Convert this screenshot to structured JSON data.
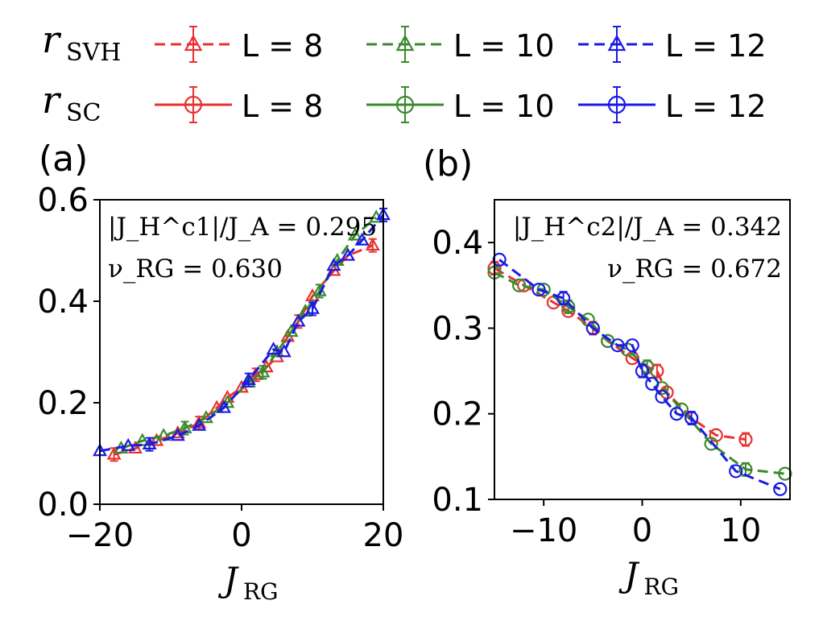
{
  "legend": {
    "rows": [
      {
        "metric": "r",
        "sub": "SVH",
        "linestyle": "dashed",
        "marker": "triangle",
        "entries": [
          {
            "label": "L = 8",
            "color": "#e8322f"
          },
          {
            "label": "L = 10",
            "color": "#3a8a2c"
          },
          {
            "label": "L = 12",
            "color": "#1a1ae6"
          }
        ]
      },
      {
        "metric": "r",
        "sub": "SC",
        "linestyle": "solid",
        "marker": "circle",
        "entries": [
          {
            "label": "L = 8",
            "color": "#e8322f"
          },
          {
            "label": "L = 10",
            "color": "#3a8a2c"
          },
          {
            "label": "L = 12",
            "color": "#1a1ae6"
          }
        ]
      }
    ]
  },
  "chart_data": [
    {
      "type": "line",
      "panel": "(a)",
      "annotation": [
        "|J_H^c1|/J_A = 0.295",
        "ν_RG = 0.630"
      ],
      "xlabel": "J_RG",
      "xlim": [
        -20,
        20
      ],
      "ylim": [
        0,
        0.6
      ],
      "xticks": [
        "−20",
        "0",
        "20"
      ],
      "yticks": [
        "0.0",
        "0.2",
        "0.4",
        "0.6"
      ],
      "marker": "triangle",
      "series": [
        {
          "name": "L = 8",
          "color": "#e8322f",
          "x": [
            -18,
            -15,
            -12,
            -9,
            -6,
            -3.5,
            -2,
            0,
            2,
            3.5,
            5,
            6.5,
            8,
            10,
            13,
            15,
            18.5
          ],
          "y": [
            0.098,
            0.11,
            0.125,
            0.14,
            0.16,
            0.19,
            0.21,
            0.23,
            0.255,
            0.27,
            0.29,
            0.33,
            0.36,
            0.41,
            0.46,
            0.49,
            0.51
          ]
        },
        {
          "name": "L = 10",
          "color": "#3a8a2c",
          "x": [
            -17,
            -14,
            -11,
            -8,
            -5,
            -2,
            1,
            3,
            5,
            7,
            9,
            11,
            13.5,
            16,
            19
          ],
          "y": [
            0.11,
            0.125,
            0.135,
            0.15,
            0.17,
            0.2,
            0.24,
            0.26,
            0.3,
            0.34,
            0.38,
            0.42,
            0.48,
            0.53,
            0.565
          ]
        },
        {
          "name": "L = 12",
          "color": "#1a1ae6",
          "x": [
            -20,
            -16,
            -13,
            -9,
            -6,
            -2.5,
            1,
            4.5,
            6,
            8,
            10,
            13,
            15,
            17,
            20
          ],
          "y": [
            0.105,
            0.115,
            0.118,
            0.135,
            0.155,
            0.19,
            0.245,
            0.305,
            0.3,
            0.36,
            0.385,
            0.47,
            0.49,
            0.52,
            0.57
          ]
        }
      ]
    },
    {
      "type": "line",
      "panel": "(b)",
      "annotation": [
        "|J_H^c2|/J_A = 0.342",
        "ν_RG = 0.672"
      ],
      "xlabel": "J_RG",
      "xlim": [
        -15,
        15
      ],
      "ylim": [
        0.1,
        0.45
      ],
      "xticks": [
        "−10",
        "0",
        "10"
      ],
      "yticks": [
        "0.1",
        "0.2",
        "0.3",
        "0.4"
      ],
      "marker": "circle",
      "series": [
        {
          "name": "L = 8",
          "color": "#e8322f",
          "x": [
            -15,
            -12,
            -9,
            -7.5,
            -5,
            -3.5,
            -1,
            0.5,
            1.5,
            2.5,
            5,
            7.5,
            10.5
          ],
          "y": [
            0.37,
            0.35,
            0.33,
            0.32,
            0.3,
            0.285,
            0.265,
            0.255,
            0.25,
            0.225,
            0.195,
            0.175,
            0.17
          ]
        },
        {
          "name": "L = 10",
          "color": "#3a8a2c",
          "x": [
            -15,
            -12.5,
            -10,
            -7.5,
            -5.5,
            -3.5,
            -1.5,
            0.5,
            2,
            4,
            7,
            10.5,
            14.5
          ],
          "y": [
            0.365,
            0.35,
            0.345,
            0.325,
            0.31,
            0.285,
            0.275,
            0.255,
            0.23,
            0.205,
            0.165,
            0.135,
            0.13
          ]
        },
        {
          "name": "L = 12",
          "color": "#1a1ae6",
          "x": [
            -14.5,
            -10.5,
            -8,
            -5,
            -2.5,
            -1,
            0,
            1,
            2,
            3.5,
            5,
            9.5,
            14
          ],
          "y": [
            0.38,
            0.345,
            0.335,
            0.3,
            0.28,
            0.28,
            0.25,
            0.235,
            0.22,
            0.2,
            0.195,
            0.133,
            0.112
          ]
        }
      ]
    }
  ]
}
